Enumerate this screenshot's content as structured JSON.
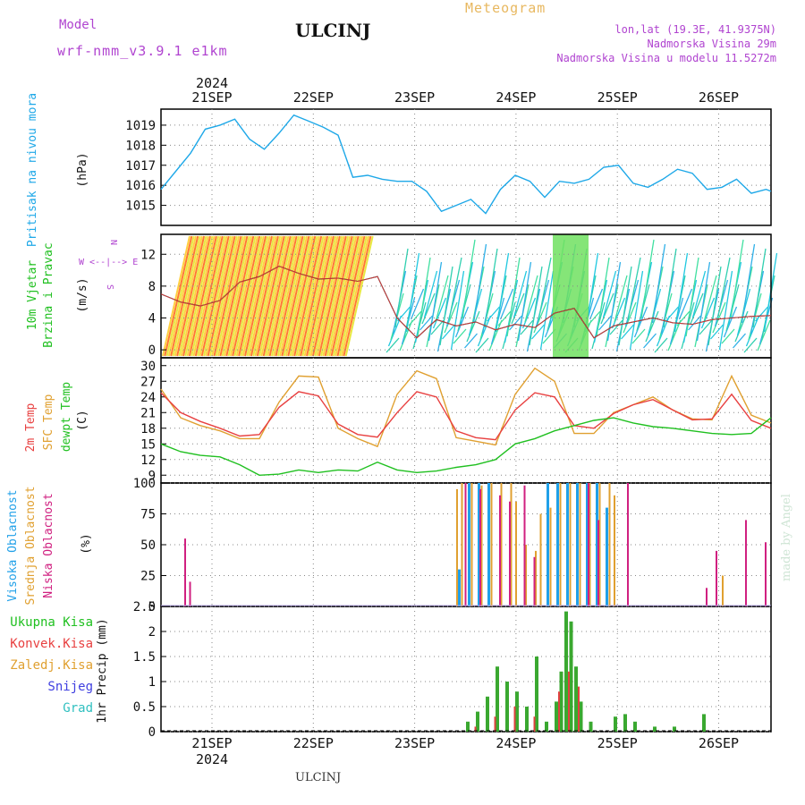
{
  "header": {
    "model_label": "Model",
    "model_name": "wrf-nmm_v3.9.1 e1km",
    "title": "ULCINJ",
    "meteogram": "Meteogram",
    "lonlat": "lon,lat (19.3E, 41.9375N)",
    "elevation": "Nadmorska Visina 29m",
    "model_elevation": "Nadmorska Visina u modelu 11.5272m"
  },
  "footer": {
    "location": "ULCINJ",
    "credit": "made by Angel"
  },
  "colors": {
    "pressure": "#1ea8e8",
    "temp": "#e84040",
    "sfc": "#e0a030",
    "dew": "#20c020",
    "high": "#20a0e8",
    "mid": "#e0a030",
    "low": "#d02080",
    "precip": "#3aa830",
    "conv": "#e04040"
  },
  "top_axis": {
    "year": "2024",
    "dates": [
      "21SEP",
      "22SEP",
      "23SEP",
      "24SEP",
      "25SEP",
      "26SEP"
    ]
  },
  "bottom_axis": {
    "year": "2024",
    "dates": [
      "21SEP",
      "22SEP",
      "23SEP",
      "24SEP",
      "25SEP",
      "26SEP"
    ]
  },
  "chart_data": [
    {
      "type": "line",
      "ylabel": "Pritisak na nivou mora",
      "unit": "(hPa)",
      "yticks": [
        1015,
        1016,
        1017,
        1018,
        1019
      ],
      "ylim": [
        1014,
        1019.8
      ],
      "series": [
        {
          "x": [
            0,
            0.15,
            0.3,
            0.45,
            0.6,
            0.75,
            0.9,
            1.05,
            1.2,
            1.35,
            1.5,
            1.65,
            1.8,
            1.95,
            2.1,
            2.25,
            2.4,
            2.55,
            2.7,
            2.85,
            3.0,
            3.15,
            3.3,
            3.45,
            3.6,
            3.75,
            3.9,
            4.05,
            4.2,
            4.35,
            4.5,
            4.65,
            4.8,
            4.95,
            5.1,
            5.25,
            5.4,
            5.55,
            5.7,
            5.85,
            6.0,
            6.15,
            6.2
          ],
          "values": [
            1015.8,
            1016.7,
            1017.6,
            1018.8,
            1019.0,
            1019.3,
            1018.3,
            1017.8,
            1018.6,
            1019.5,
            1019.2,
            1018.9,
            1018.5,
            1016.4,
            1016.5,
            1016.3,
            1016.2,
            1016.2,
            1015.7,
            1014.7,
            1015.0,
            1015.3,
            1014.6,
            1015.8,
            1016.5,
            1016.2,
            1015.4,
            1016.2,
            1016.1,
            1016.3,
            1016.9,
            1017.0,
            1016.1,
            1015.9,
            1016.3,
            1016.8,
            1016.6,
            1015.8,
            1015.9,
            1016.3,
            1015.6,
            1015.8,
            1015.7
          ]
        }
      ]
    },
    {
      "type": "line",
      "ylabel": "10m Vjetar Brzina i Pravac",
      "unit": "(m/s)",
      "compass": [
        "N",
        "W <--|--> E",
        "S"
      ],
      "yticks": [
        0,
        4,
        8,
        12
      ],
      "ylim": [
        -1,
        14.5
      ],
      "series": [
        {
          "x": [
            0,
            0.2,
            0.4,
            0.6,
            0.8,
            1.0,
            1.2,
            1.4,
            1.6,
            1.8,
            2.0,
            2.2,
            2.4,
            2.6,
            2.8,
            3.0,
            3.2,
            3.4,
            3.6,
            3.8,
            4.0,
            4.2,
            4.4,
            4.6,
            4.8,
            5.0,
            5.2,
            5.4,
            5.6,
            5.8,
            6.0,
            6.2
          ],
          "values": [
            7.0,
            6.0,
            5.5,
            6.2,
            8.5,
            9.2,
            10.5,
            9.6,
            8.9,
            9.0,
            8.6,
            9.2,
            4.0,
            1.5,
            3.8,
            3.0,
            3.5,
            2.5,
            3.2,
            2.8,
            4.6,
            5.2,
            1.5,
            3.0,
            3.5,
            4.0,
            3.4,
            3.2,
            3.8,
            4.0,
            4.2,
            4.3
          ]
        }
      ]
    },
    {
      "type": "line",
      "ylabel": "2m Temp / SFC Temp / dewpt Temp",
      "unit": "(C)",
      "yticks": [
        9,
        12,
        15,
        18,
        21,
        24,
        27,
        30
      ],
      "ylim": [
        7.5,
        31.5
      ],
      "series": [
        {
          "name": "2m Temp",
          "x": [
            0,
            0.2,
            0.4,
            0.6,
            0.8,
            1.0,
            1.2,
            1.4,
            1.6,
            1.8,
            2.0,
            2.2,
            2.4,
            2.6,
            2.8,
            3.0,
            3.2,
            3.4,
            3.6,
            3.8,
            4.0,
            4.2,
            4.4,
            4.6,
            4.8,
            5.0,
            5.2,
            5.4,
            5.6,
            5.8,
            6.0,
            6.2
          ],
          "values": [
            24.8,
            21.0,
            19.3,
            18.0,
            16.5,
            16.8,
            22.0,
            25.0,
            24.2,
            18.8,
            16.8,
            16.3,
            21.0,
            25.0,
            24.0,
            17.5,
            16.2,
            15.8,
            21.5,
            24.8,
            24.0,
            18.5,
            18.0,
            20.8,
            22.5,
            23.5,
            21.5,
            19.6,
            19.8,
            24.5,
            19.5,
            18.0
          ]
        },
        {
          "name": "SFC Temp",
          "x": [
            0,
            0.2,
            0.4,
            0.6,
            0.8,
            1.0,
            1.2,
            1.4,
            1.6,
            1.8,
            2.0,
            2.2,
            2.4,
            2.6,
            2.8,
            3.0,
            3.2,
            3.4,
            3.6,
            3.8,
            4.0,
            4.2,
            4.4,
            4.6,
            4.8,
            5.0,
            5.2,
            5.4,
            5.6,
            5.8,
            6.0,
            6.2
          ],
          "values": [
            25.5,
            20.0,
            18.5,
            17.5,
            16.0,
            16.0,
            23.0,
            28.0,
            27.8,
            18.0,
            16.0,
            14.5,
            24.5,
            29.0,
            27.5,
            16.2,
            15.5,
            14.8,
            24.5,
            29.5,
            27.0,
            17.0,
            17.0,
            21.0,
            22.5,
            24.0,
            21.5,
            19.8,
            19.6,
            28.0,
            20.5,
            19.0
          ]
        },
        {
          "name": "dewpt Temp",
          "x": [
            0,
            0.2,
            0.4,
            0.6,
            0.8,
            1.0,
            1.2,
            1.4,
            1.6,
            1.8,
            2.0,
            2.2,
            2.4,
            2.6,
            2.8,
            3.0,
            3.2,
            3.4,
            3.6,
            3.8,
            4.0,
            4.2,
            4.4,
            4.6,
            4.8,
            5.0,
            5.2,
            5.4,
            5.6,
            5.8,
            6.0,
            6.2
          ],
          "values": [
            15.0,
            13.5,
            12.8,
            12.5,
            11.0,
            9.0,
            9.2,
            10.0,
            9.5,
            10.0,
            9.8,
            11.5,
            10.0,
            9.5,
            9.8,
            10.5,
            11.0,
            12.0,
            15.0,
            16.0,
            17.5,
            18.5,
            19.5,
            20.0,
            19.0,
            18.3,
            18.0,
            17.5,
            17.0,
            16.8,
            17.0,
            20.0
          ]
        }
      ]
    },
    {
      "type": "bar",
      "ylabel": "Visoka Oblacnost / Srednja Oblacnost / Niska Oblacnost",
      "unit": "(%)",
      "yticks": [
        0,
        25,
        50,
        75,
        100
      ],
      "ylim": [
        0,
        100
      ],
      "series": [
        {
          "name": "Visoka Oblacnost",
          "x": [
            3.0,
            3.1,
            3.2,
            3.3,
            3.9,
            4.0,
            4.1,
            4.2,
            4.3,
            4.4,
            4.5
          ],
          "values": [
            30,
            100,
            100,
            100,
            100,
            100,
            100,
            100,
            100,
            100,
            80
          ]
        },
        {
          "name": "Srednja Oblacnost",
          "x": [
            3.0,
            3.05,
            3.15,
            3.25,
            3.35,
            3.45,
            3.55,
            3.6,
            3.7,
            3.8,
            3.85,
            3.95,
            4.05,
            4.15,
            4.25,
            4.35,
            4.45,
            4.55,
            4.6,
            5.7
          ],
          "values": [
            95,
            100,
            100,
            98,
            100,
            100,
            100,
            85,
            50,
            45,
            75,
            80,
            100,
            100,
            100,
            100,
            100,
            100,
            90,
            25
          ]
        },
        {
          "name": "Niska Oblacnost",
          "x": [
            0.2,
            0.25,
            3.05,
            3.2,
            3.4,
            3.5,
            3.65,
            3.75,
            4.3,
            4.4,
            4.7,
            5.5,
            5.6,
            5.9,
            6.1
          ],
          "values": [
            55,
            20,
            100,
            95,
            90,
            85,
            98,
            40,
            100,
            70,
            100,
            15,
            45,
            70,
            52
          ]
        }
      ]
    },
    {
      "type": "bar",
      "ylabel": "1hr Precip",
      "unit": "(mm)",
      "legend": [
        "Ukupna Kisa",
        "Konvek.Kisa",
        "Zaledj.Kisa",
        "Snijeg",
        "Grad"
      ],
      "yticks": [
        0,
        0.5,
        1,
        1.5,
        2,
        2.5
      ],
      "ylim": [
        0,
        2.5
      ],
      "series": [
        {
          "name": "Ukupna Kisa",
          "x": [
            3.1,
            3.2,
            3.3,
            3.4,
            3.5,
            3.6,
            3.7,
            3.8,
            3.9,
            4.0,
            4.05,
            4.1,
            4.15,
            4.2,
            4.25,
            4.35,
            4.6,
            4.7,
            4.8,
            5.0,
            5.2,
            5.5
          ],
          "values": [
            0.2,
            0.4,
            0.7,
            1.3,
            1.0,
            0.8,
            0.5,
            1.5,
            0.2,
            0.6,
            1.2,
            2.4,
            2.2,
            1.3,
            0.6,
            0.2,
            0.3,
            0.35,
            0.2,
            0.1,
            0.1,
            0.35
          ]
        },
        {
          "name": "Konvek.Kisa",
          "x": [
            3.15,
            3.35,
            3.55,
            3.75,
            4.0,
            4.1,
            4.2
          ],
          "values": [
            0.1,
            0.3,
            0.5,
            0.3,
            0.8,
            1.2,
            0.9
          ]
        }
      ]
    }
  ]
}
